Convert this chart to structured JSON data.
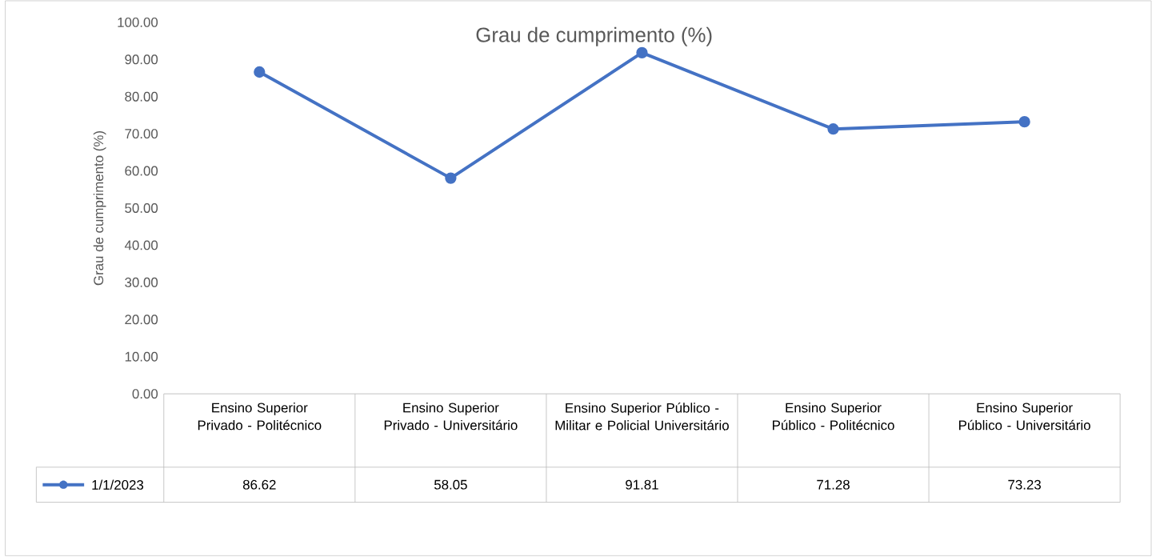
{
  "chart_data": {
    "type": "line",
    "title": "Grau de cumprimento (%)",
    "ylabel": "Grau de cumprimento (%)",
    "categories": [
      "Ensino Superior Privado - Politécnico",
      "Ensino Superior Privado - Universitário",
      "Ensino Superior Público - Militar e Policial Universitário",
      "Ensino Superior Público - Politécnico",
      "Ensino Superior Público - Universitário"
    ],
    "series": [
      {
        "name": "1/1/2023",
        "color": "#4472c4",
        "values": [
          86.62,
          58.05,
          91.81,
          71.28,
          73.23
        ]
      }
    ],
    "ylim": [
      0,
      100
    ],
    "yticks": [
      {
        "value": 0,
        "label": "0.00"
      },
      {
        "value": 10,
        "label": "10.00"
      },
      {
        "value": 20,
        "label": "20.00"
      },
      {
        "value": 30,
        "label": "30.00"
      },
      {
        "value": 40,
        "label": "40.00"
      },
      {
        "value": 50,
        "label": "50.00"
      },
      {
        "value": 60,
        "label": "60.00"
      },
      {
        "value": 70,
        "label": "70.00"
      },
      {
        "value": 80,
        "label": "80.00"
      },
      {
        "value": 90,
        "label": "90.00"
      },
      {
        "value": 100,
        "label": "100.00"
      }
    ],
    "data_labels": true,
    "legend": "bottom",
    "marker": "circle",
    "line_style": "solid"
  }
}
